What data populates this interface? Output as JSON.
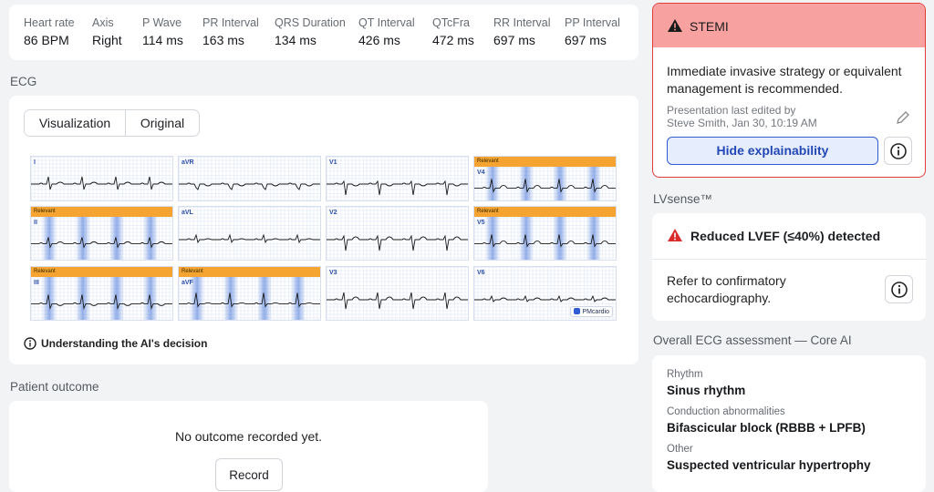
{
  "metrics": [
    {
      "label": "Heart rate",
      "value": "86 BPM"
    },
    {
      "label": "Axis",
      "value": "Right"
    },
    {
      "label": "P Wave",
      "value": "114 ms"
    },
    {
      "label": "PR Interval",
      "value": "163 ms"
    },
    {
      "label": "QRS Duration",
      "value": "134 ms"
    },
    {
      "label": "QT Interval",
      "value": "426 ms"
    },
    {
      "label": "QTcFra",
      "value": "472 ms"
    },
    {
      "label": "RR Interval",
      "value": "697 ms"
    },
    {
      "label": "PP Interval",
      "value": "697 ms"
    }
  ],
  "ecg": {
    "title": "ECG",
    "tabs": [
      "Visualization",
      "Original"
    ],
    "leads": [
      {
        "name": "I"
      },
      {
        "name": "aVR"
      },
      {
        "name": "V1"
      },
      {
        "name": "V4",
        "tag": "Relevant"
      },
      {
        "name": "II",
        "tag": "Relevant"
      },
      {
        "name": "aVL"
      },
      {
        "name": "V2"
      },
      {
        "name": "V5",
        "tag": "Relevant"
      },
      {
        "name": "III",
        "tag": "Relevant"
      },
      {
        "name": "aVF",
        "tag": "Relevant"
      },
      {
        "name": "V3"
      },
      {
        "name": "V6"
      }
    ],
    "brand": "PMcardio",
    "explain_link": "Understanding the AI's decision"
  },
  "outcome": {
    "title": "Patient outcome",
    "message": "No outcome recorded yet.",
    "button": "Record"
  },
  "alert": {
    "title": "STEMI",
    "message": "Immediate invasive strategy or equivalent management is recommended.",
    "edited_label": "Presentation last edited by",
    "edited_by": "Steve Smith, Jan 30, 10:19 AM",
    "button": "Hide explainability"
  },
  "lvsense": {
    "title": "LVsense™",
    "finding": "Reduced LVEF (≤40%) detected",
    "advice": "Refer to confirmatory echocardiography."
  },
  "assessment": {
    "title": "Overall ECG assessment — Core AI",
    "items": [
      {
        "label": "Rhythm",
        "value": "Sinus rhythm"
      },
      {
        "label": "Conduction abnormalities",
        "value": "Bifascicular block (RBBB + LPFB)"
      },
      {
        "label": "Other",
        "value": "Suspected ventricular hypertrophy"
      }
    ]
  }
}
